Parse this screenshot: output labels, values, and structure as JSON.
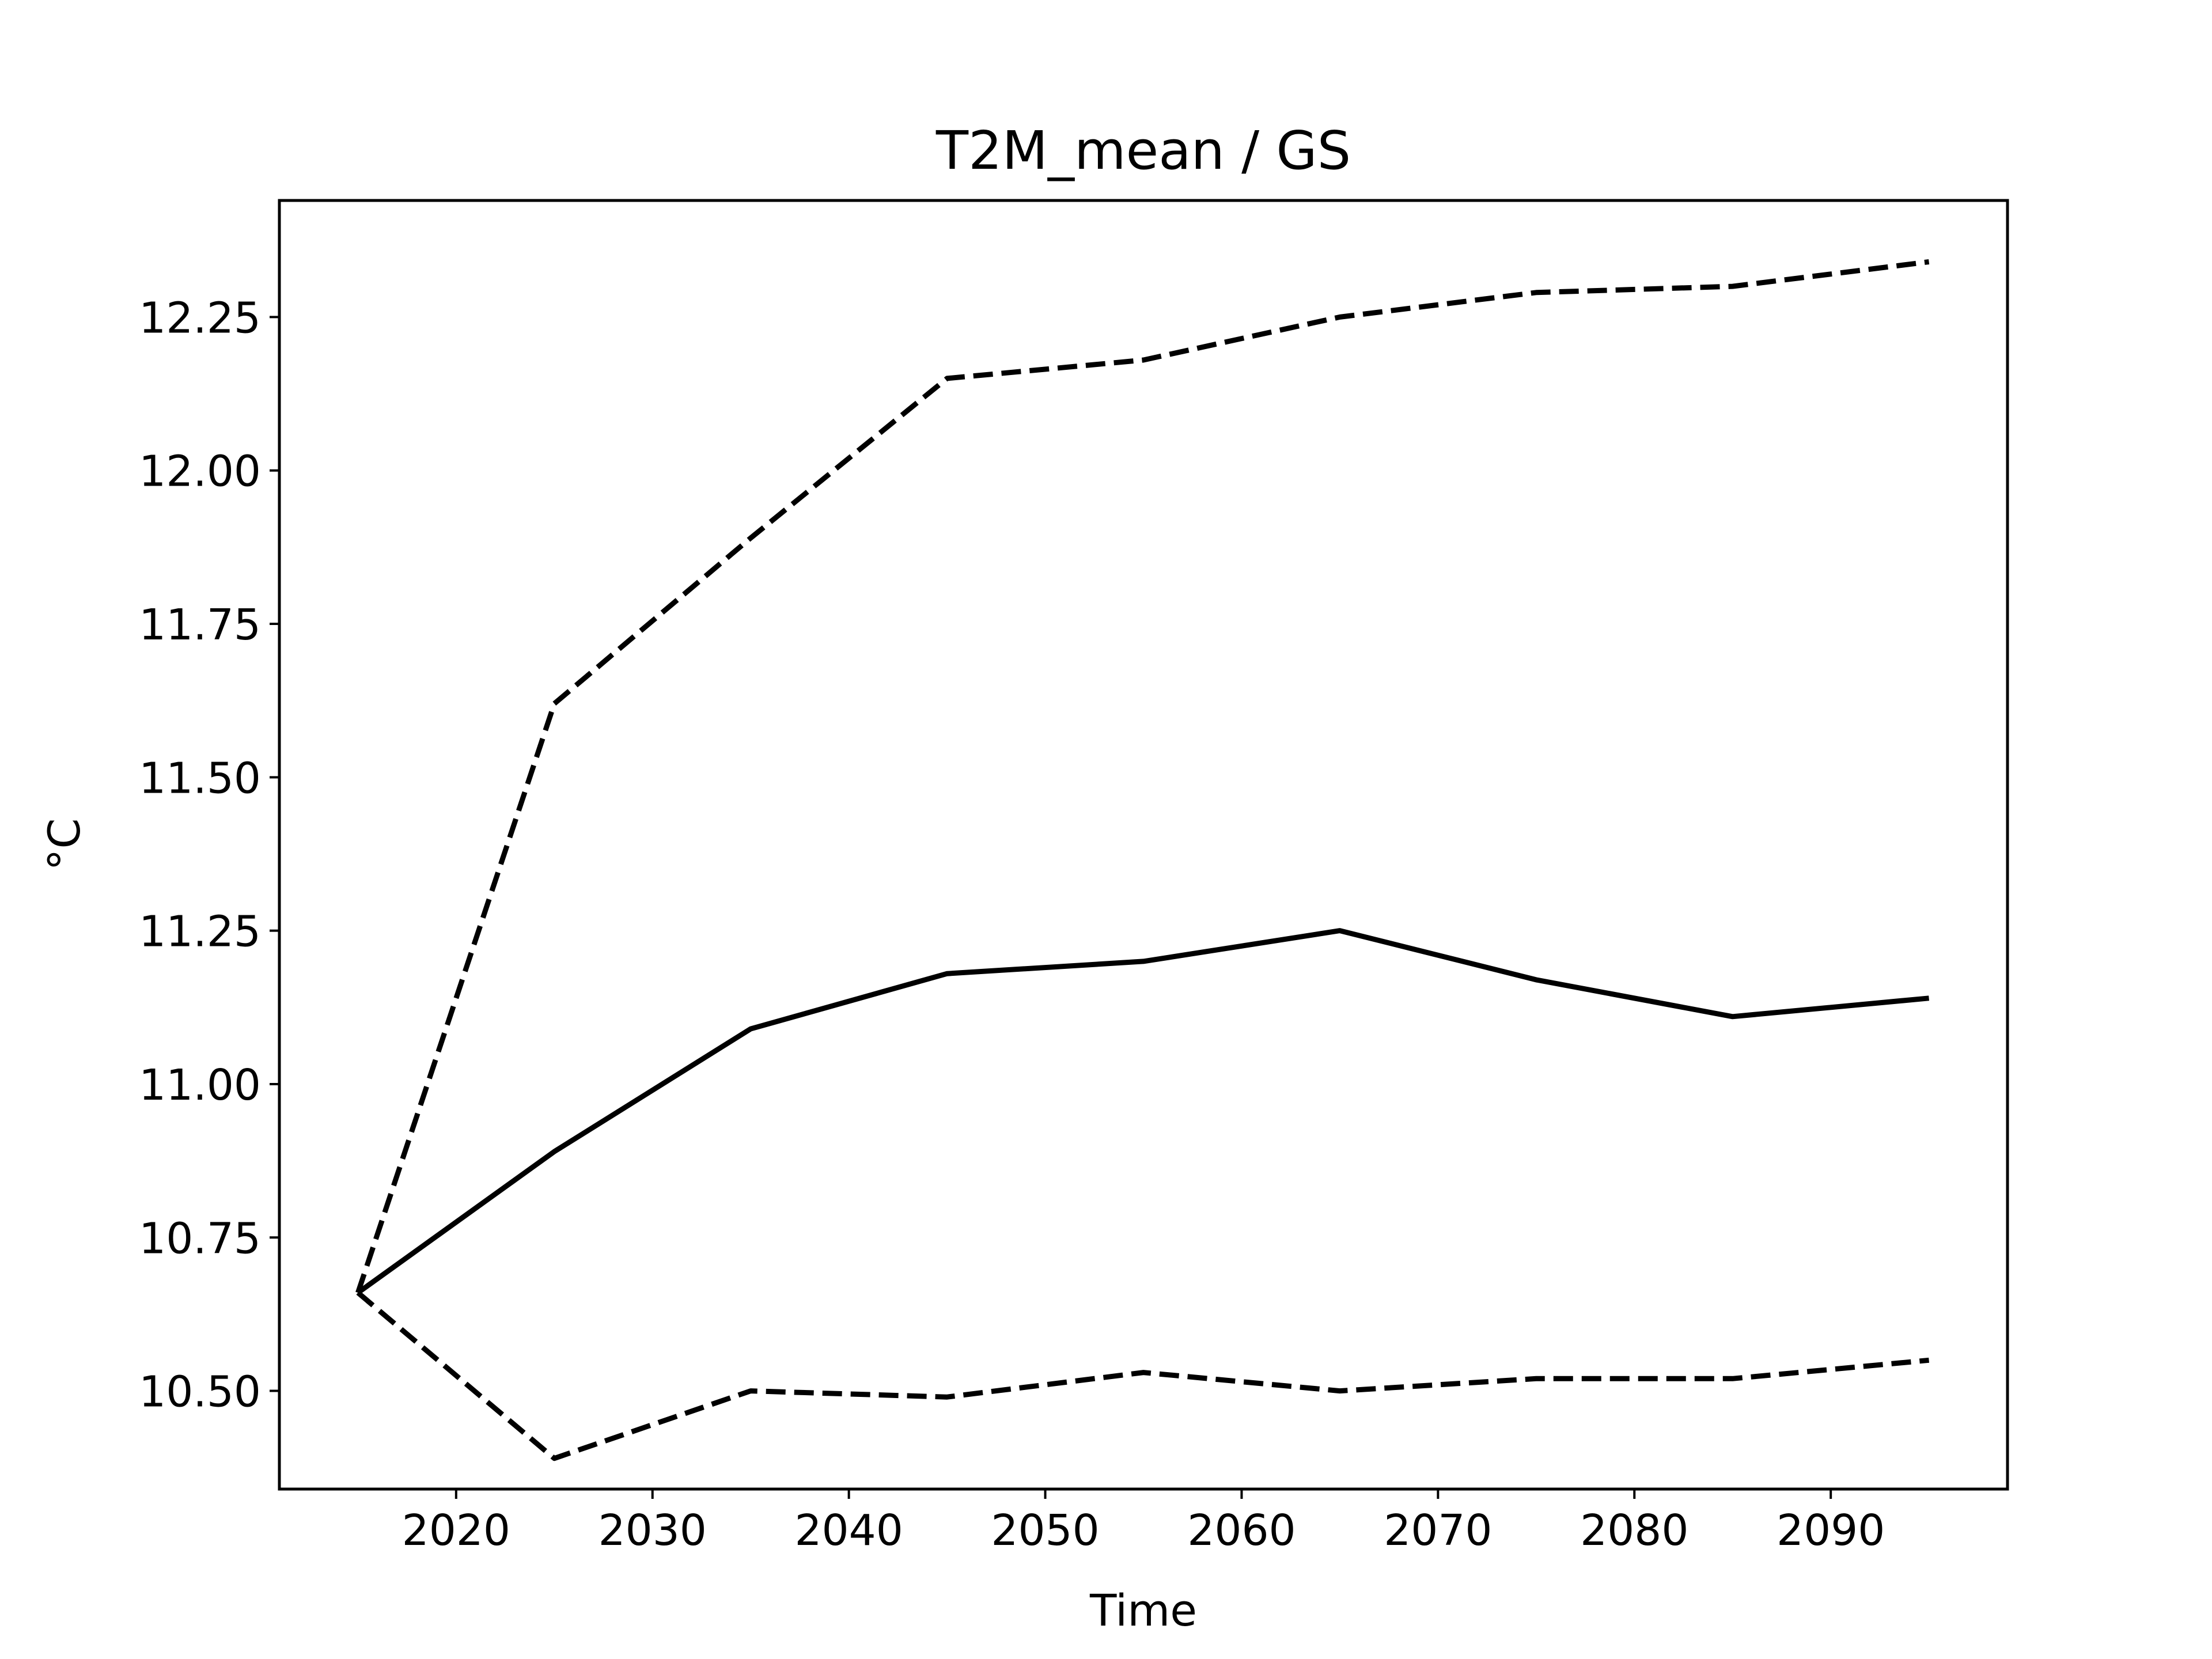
{
  "chart_data": {
    "type": "line",
    "title": "T2M_mean / GS",
    "xlabel": "Time",
    "ylabel": "°C",
    "x": [
      2015,
      2025,
      2035,
      2045,
      2055,
      2065,
      2075,
      2085,
      2095
    ],
    "xlim": [
      2011,
      2099
    ],
    "ylim": [
      10.34,
      12.44
    ],
    "xticks": [
      2020,
      2030,
      2040,
      2050,
      2060,
      2070,
      2080,
      2090
    ],
    "xtick_labels": [
      "2020",
      "2030",
      "2040",
      "2050",
      "2060",
      "2070",
      "2080",
      "2090"
    ],
    "yticks": [
      10.5,
      10.75,
      11.0,
      11.25,
      11.5,
      11.75,
      12.0,
      12.25
    ],
    "ytick_labels": [
      "10.50",
      "10.75",
      "11.00",
      "11.25",
      "11.50",
      "11.75",
      "12.00",
      "12.25"
    ],
    "grid": false,
    "series": [
      {
        "style": "solid",
        "color": "#000000",
        "values": [
          10.66,
          10.89,
          11.09,
          11.18,
          11.2,
          11.25,
          11.17,
          11.11,
          11.14
        ]
      },
      {
        "style": "dashed",
        "color": "#000000",
        "values": [
          10.66,
          11.62,
          11.89,
          12.15,
          12.18,
          12.25,
          12.29,
          12.3,
          12.34
        ]
      },
      {
        "style": "dashed",
        "color": "#000000",
        "values": [
          10.66,
          10.39,
          10.5,
          10.49,
          10.53,
          10.5,
          10.52,
          10.52,
          10.55
        ]
      }
    ]
  }
}
